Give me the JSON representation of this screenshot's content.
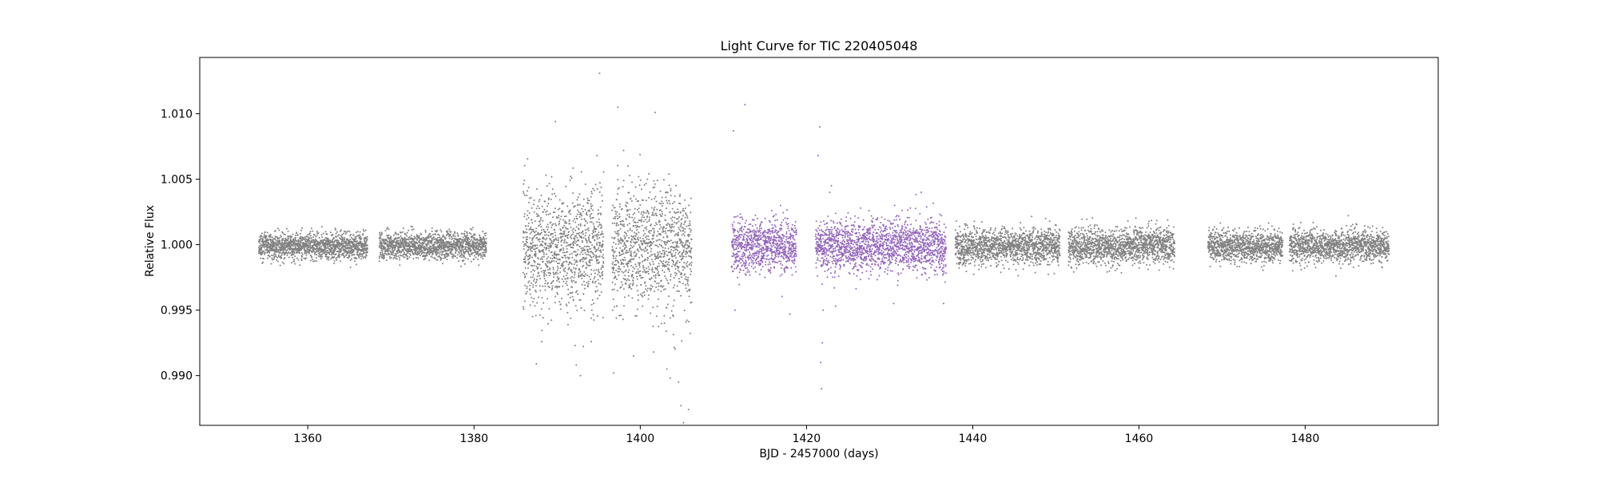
{
  "chart_data": {
    "type": "scatter",
    "title": "Light Curve for TIC 220405048",
    "xlabel": "BJD - 2457000 (days)",
    "ylabel": "Relative Flux",
    "xlim": [
      1347,
      1496
    ],
    "ylim": [
      0.9862,
      1.0143
    ],
    "xticks": [
      1360,
      1380,
      1400,
      1420,
      1440,
      1460,
      1480
    ],
    "xtick_labels": [
      "1360",
      "1380",
      "1400",
      "1420",
      "1440",
      "1460",
      "1480"
    ],
    "yticks": [
      0.99,
      0.995,
      1.0,
      1.005,
      1.01
    ],
    "ytick_labels": [
      "0.990",
      "0.995",
      "1.000",
      "1.005",
      "1.010"
    ],
    "grid": false,
    "legend": "none",
    "colors": {
      "base": "#808080",
      "highlight": "#9467bd"
    },
    "series": [
      {
        "color": "#808080",
        "segments": [
          {
            "x_start": 1354.1,
            "x_end": 1367.2,
            "median": 0.9999,
            "scatter": 0.0005
          },
          {
            "x_start": 1368.6,
            "x_end": 1381.5,
            "median": 0.9999,
            "scatter": 0.0005
          },
          {
            "x_start": 1385.9,
            "x_end": 1395.6,
            "median": 0.9999,
            "scatter": 0.0022
          },
          {
            "x_start": 1396.6,
            "x_end": 1406.2,
            "median": 0.9999,
            "scatter": 0.0022
          },
          {
            "x_start": 1437.9,
            "x_end": 1450.5,
            "median": 0.9999,
            "scatter": 0.0007
          },
          {
            "x_start": 1451.5,
            "x_end": 1464.3,
            "median": 0.9999,
            "scatter": 0.0007
          },
          {
            "x_start": 1468.3,
            "x_end": 1477.3,
            "median": 0.9999,
            "scatter": 0.0006
          },
          {
            "x_start": 1478.1,
            "x_end": 1490.1,
            "median": 0.9999,
            "scatter": 0.0006
          }
        ],
        "points": [
          [
            1395.1,
            1.0131
          ],
          [
            1397.3,
            1.0105
          ],
          [
            1401.8,
            1.0101
          ],
          [
            1389.8,
            1.0094
          ],
          [
            1398.0,
            1.0072
          ],
          [
            1394.8,
            1.0068
          ],
          [
            1387.5,
            0.9909
          ],
          [
            1392.8,
            0.99
          ],
          [
            1396.8,
            0.9902
          ],
          [
            1399.2,
            0.9915
          ],
          [
            1401.6,
            0.9918
          ],
          [
            1403.2,
            0.9905
          ],
          [
            1404.6,
            0.9895
          ],
          [
            1404.9,
            0.9877
          ],
          [
            1405.2,
            0.9864
          ],
          [
            1405.8,
            0.9874
          ],
          [
            1403.6,
            0.9898
          ],
          [
            1392.3,
            0.9908
          ],
          [
            1394.1,
            0.9926
          ],
          [
            1402.9,
            0.994
          ]
        ]
      },
      {
        "color": "#9467bd",
        "segments": [
          {
            "x_start": 1411.0,
            "x_end": 1418.8,
            "median": 0.9999,
            "scatter": 0.001
          },
          {
            "x_start": 1421.1,
            "x_end": 1436.8,
            "median": 0.9999,
            "scatter": 0.001
          }
        ],
        "points": [
          [
            1412.6,
            1.0107
          ],
          [
            1411.2,
            1.0087
          ],
          [
            1421.6,
            1.009
          ],
          [
            1421.4,
            1.0068
          ],
          [
            1421.8,
            0.989
          ],
          [
            1421.7,
            0.991
          ],
          [
            1421.9,
            0.9925
          ],
          [
            1422.0,
            0.995
          ],
          [
            1423.0,
            1.0045
          ],
          [
            1422.8,
            1.004
          ],
          [
            1433.8,
            1.004
          ],
          [
            1411.4,
            0.995
          ],
          [
            1418.0,
            0.9947
          ],
          [
            1423.5,
            0.9953
          ],
          [
            1430.5,
            0.9955
          ],
          [
            1436.5,
            0.9955
          ],
          [
            1415.0,
            0.9975
          ],
          [
            1426.5,
            1.0028
          ],
          [
            1428.0,
            1.002
          ],
          [
            1432.5,
            1.0028
          ]
        ]
      }
    ]
  }
}
